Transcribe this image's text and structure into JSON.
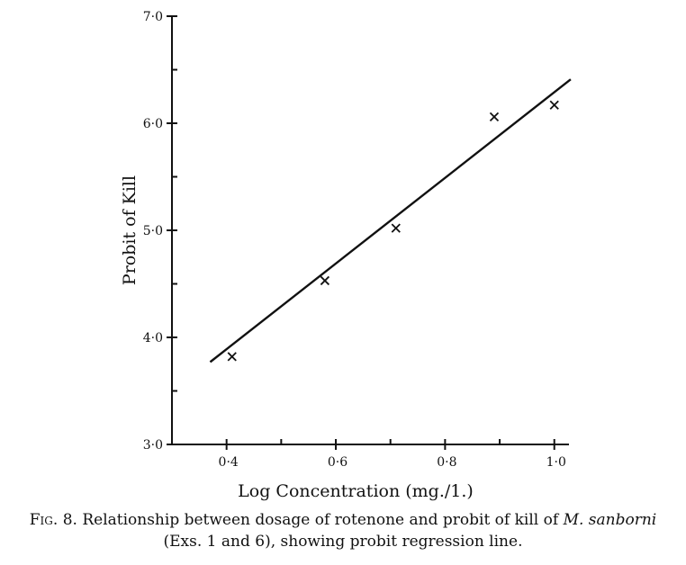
{
  "chart_data": {
    "type": "scatter",
    "xlabel": "Log Concentration (mg./1.)",
    "ylabel": "Probit of Kill",
    "xlim": [
      0.3,
      1.04
    ],
    "ylim": [
      3.0,
      7.0
    ],
    "x_ticks": [
      0.4,
      0.6,
      0.8,
      1.0
    ],
    "x_tick_labels": [
      "0·4",
      "0·6",
      "0·8",
      "1·0"
    ],
    "y_ticks": [
      3.0,
      4.0,
      5.0,
      6.0,
      7.0
    ],
    "y_tick_labels": [
      "3·0",
      "4·0",
      "5·0",
      "6·0",
      "7·0"
    ],
    "points": [
      {
        "x": 0.41,
        "y": 3.82
      },
      {
        "x": 0.58,
        "y": 4.53
      },
      {
        "x": 0.71,
        "y": 5.02
      },
      {
        "x": 0.89,
        "y": 6.06
      },
      {
        "x": 1.0,
        "y": 6.17
      }
    ],
    "regression_line": {
      "x": [
        0.37,
        1.03
      ],
      "y": [
        3.77,
        6.41
      ]
    },
    "grid": false,
    "legend": "none"
  },
  "caption": {
    "fig_label": "Fig. 8.",
    "text_before": "Relationship between dosage of rotenone and probit of kill of",
    "species": "M. sanborni",
    "text_after": "(Exs. 1 and 6), showing probit regression line."
  }
}
